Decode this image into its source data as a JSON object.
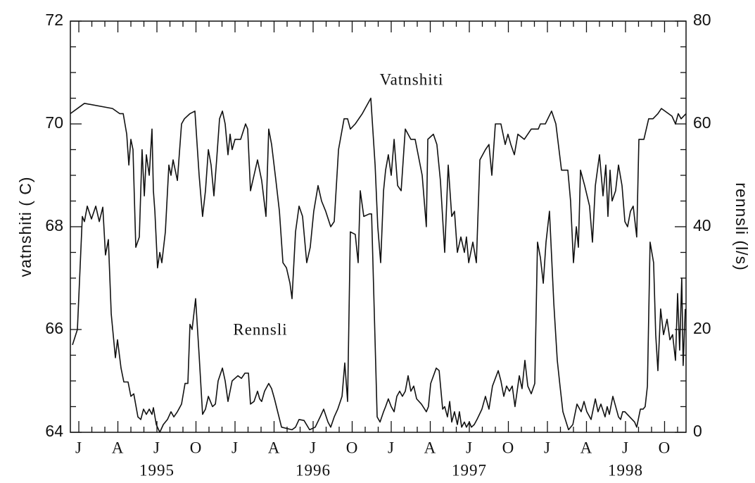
{
  "chart_data": {
    "type": "line",
    "y_label": "vatnshiti ( C)",
    "y2_label": "rennsli (l/s)",
    "xlim": [
      -0.65,
      46.65
    ],
    "xticks": [
      {
        "value": 0,
        "label": "J"
      },
      {
        "value": 3,
        "label": "A"
      },
      {
        "value": 6,
        "label": "J"
      },
      {
        "value": 9,
        "label": "O"
      },
      {
        "value": 12,
        "label": "J"
      },
      {
        "value": 15,
        "label": "A"
      },
      {
        "value": 18,
        "label": "J"
      },
      {
        "value": 21,
        "label": "O"
      },
      {
        "value": 24,
        "label": "J"
      },
      {
        "value": 27,
        "label": "A"
      },
      {
        "value": 30,
        "label": "J"
      },
      {
        "value": 33,
        "label": "O"
      },
      {
        "value": 36,
        "label": "J"
      },
      {
        "value": 39,
        "label": "A"
      },
      {
        "value": 42,
        "label": "J"
      },
      {
        "value": 45,
        "label": "O"
      }
    ],
    "xyear_ticks": [
      {
        "value": 6,
        "label": "1995"
      },
      {
        "value": 18,
        "label": "1996"
      },
      {
        "value": 30,
        "label": "1997"
      },
      {
        "value": 42,
        "label": "1998"
      }
    ],
    "xminor_ticks": [
      1,
      2,
      4,
      5,
      7,
      8,
      10,
      11,
      13,
      14,
      16,
      17,
      19,
      20,
      22,
      23,
      25,
      26,
      28,
      29,
      31,
      32,
      34,
      35,
      37,
      38,
      40,
      41,
      43,
      44,
      46
    ],
    "ylim": [
      64,
      72
    ],
    "yticks": [
      64,
      66,
      68,
      70,
      72
    ],
    "yminor_ticks": [
      64.5,
      65,
      65.5,
      66.5,
      67,
      67.5,
      68.5,
      69,
      69.5,
      70.5,
      71,
      71.5
    ],
    "y2lim": [
      0,
      80
    ],
    "y2ticks": [
      0,
      20,
      40,
      60,
      80
    ],
    "y2minor_ticks": [
      5,
      10,
      15,
      25,
      30,
      35,
      45,
      50,
      55,
      65,
      70,
      75
    ],
    "series": [
      {
        "name": "Vatnshiti",
        "color": "#111111",
        "axis": "y",
        "x": [
          -0.65,
          0.43,
          2.59,
          3.14,
          3.41,
          3.68,
          3.84,
          4.0,
          4.16,
          4.38,
          4.65,
          4.86,
          5.03,
          5.19,
          5.41,
          5.62,
          5.73,
          5.84,
          6.05,
          6.22,
          6.38,
          6.65,
          6.92,
          7.08,
          7.24,
          7.57,
          7.89,
          8.11,
          8.54,
          8.92,
          9.24,
          9.51,
          9.73,
          9.95,
          10.16,
          10.38,
          10.59,
          10.81,
          11.03,
          11.24,
          11.46,
          11.62,
          11.78,
          12.0,
          12.43,
          12.81,
          12.97,
          13.19,
          13.46,
          13.73,
          14.05,
          14.38,
          14.59,
          14.81,
          15.14,
          15.41,
          15.68,
          15.95,
          16.22,
          16.38,
          16.65,
          16.92,
          17.19,
          17.51,
          17.78,
          18.05,
          18.38,
          18.65,
          18.97,
          19.35,
          19.62,
          19.95,
          20.38,
          20.65,
          20.86,
          21.24,
          21.78,
          22.43,
          22.76,
          22.97,
          23.19,
          23.41,
          23.57,
          23.78,
          24.0,
          24.22,
          24.49,
          24.76,
          25.08,
          25.51,
          25.84,
          26.38,
          26.7,
          26.81,
          27.24,
          27.51,
          27.78,
          28.11,
          28.38,
          28.65,
          28.86,
          29.08,
          29.35,
          29.62,
          29.78,
          29.95,
          30.27,
          30.54,
          30.81,
          31.24,
          31.51,
          31.73,
          32.0,
          32.43,
          32.76,
          32.97,
          33.19,
          33.46,
          33.73,
          34.22,
          34.76,
          35.3,
          35.46,
          35.84,
          36.32,
          36.65,
          37.08,
          37.57,
          37.78,
          38.0,
          38.22,
          38.38,
          38.54,
          38.86,
          39.24,
          39.46,
          39.68,
          40.0,
          40.27,
          40.49,
          40.65,
          40.81,
          40.97,
          41.24,
          41.46,
          41.73,
          41.95,
          42.16,
          42.38,
          42.59,
          42.86,
          43.03,
          43.41,
          43.78,
          44.11,
          44.49,
          44.76,
          45.3,
          45.57,
          45.84,
          46.05,
          46.27,
          46.65
        ],
        "values": [
          70.2,
          70.4,
          70.3,
          70.2,
          70.2,
          69.8,
          69.2,
          69.7,
          69.5,
          67.6,
          67.8,
          69.5,
          68.6,
          69.4,
          69.0,
          69.9,
          68.7,
          68.3,
          67.2,
          67.5,
          67.3,
          67.9,
          69.2,
          69.0,
          69.3,
          68.9,
          70.0,
          70.1,
          70.2,
          70.25,
          69.0,
          68.2,
          68.7,
          69.5,
          69.2,
          68.6,
          69.3,
          70.1,
          70.25,
          70.0,
          69.4,
          69.8,
          69.5,
          69.7,
          69.7,
          70.0,
          69.9,
          68.7,
          69.0,
          69.3,
          68.9,
          68.2,
          69.9,
          69.6,
          68.9,
          68.3,
          67.3,
          67.2,
          66.9,
          66.6,
          67.9,
          68.4,
          68.2,
          67.3,
          67.6,
          68.3,
          68.8,
          68.5,
          68.3,
          68.0,
          68.1,
          69.5,
          70.1,
          70.1,
          69.9,
          70.0,
          70.2,
          70.5,
          69.2,
          68.0,
          67.3,
          68.7,
          69.1,
          69.4,
          69.0,
          69.7,
          68.8,
          68.7,
          69.9,
          69.7,
          69.7,
          69.0,
          68.0,
          69.7,
          69.8,
          69.6,
          68.9,
          67.5,
          69.2,
          68.2,
          68.3,
          67.5,
          67.8,
          67.5,
          67.8,
          67.3,
          67.7,
          67.3,
          69.3,
          69.5,
          69.6,
          69.0,
          70.0,
          70.0,
          69.6,
          69.8,
          69.6,
          69.4,
          69.8,
          69.7,
          69.9,
          69.9,
          70.0,
          70.0,
          70.25,
          70.0,
          69.1,
          69.1,
          68.5,
          67.3,
          68.0,
          67.6,
          69.1,
          68.8,
          68.4,
          67.7,
          68.8,
          69.4,
          68.6,
          69.2,
          68.2,
          69.1,
          68.5,
          68.7,
          69.2,
          68.8,
          68.1,
          68.0,
          68.3,
          68.4,
          67.8,
          69.7,
          69.7,
          70.1,
          70.1,
          70.2,
          70.3,
          70.2,
          70.15,
          70.0,
          70.2,
          70.1,
          70.2
        ]
      },
      {
        "name": "Rennsli",
        "color": "#111111",
        "axis": "y2",
        "x": [
          -0.49,
          -0.11,
          0.27,
          0.43,
          0.65,
          0.97,
          1.3,
          1.57,
          1.84,
          2.05,
          2.27,
          2.49,
          2.81,
          2.97,
          3.24,
          3.46,
          3.78,
          4.0,
          4.22,
          4.54,
          4.76,
          4.97,
          5.19,
          5.41,
          5.62,
          5.73,
          5.95,
          6.22,
          6.49,
          6.81,
          7.08,
          7.3,
          7.57,
          7.89,
          8.16,
          8.38,
          8.54,
          8.7,
          8.97,
          9.24,
          9.51,
          9.73,
          9.95,
          10.27,
          10.49,
          10.7,
          11.03,
          11.24,
          11.46,
          11.78,
          12.22,
          12.49,
          12.76,
          13.03,
          13.19,
          13.46,
          13.73,
          13.89,
          14.05,
          14.27,
          14.59,
          14.81,
          15.03,
          15.57,
          16.38,
          16.65,
          16.92,
          17.3,
          17.73,
          18.16,
          18.54,
          18.81,
          19.14,
          19.35,
          19.62,
          19.89,
          20.22,
          20.43,
          20.65,
          20.86,
          21.24,
          21.46,
          21.62,
          21.89,
          22.32,
          22.49,
          22.92,
          23.14,
          23.41,
          23.57,
          23.78,
          24.0,
          24.22,
          24.43,
          24.65,
          24.86,
          25.08,
          25.3,
          25.51,
          25.73,
          25.95,
          26.32,
          26.7,
          26.86,
          27.03,
          27.46,
          27.68,
          27.95,
          28.11,
          28.32,
          28.49,
          28.65,
          28.86,
          29.08,
          29.24,
          29.41,
          29.62,
          29.78,
          30.0,
          30.16,
          30.38,
          30.59,
          30.97,
          31.24,
          31.51,
          31.78,
          32.22,
          32.43,
          32.65,
          32.86,
          33.08,
          33.3,
          33.51,
          33.84,
          34.05,
          34.27,
          34.49,
          34.76,
          35.03,
          35.24,
          35.46,
          35.68,
          35.89,
          36.16,
          36.49,
          36.76,
          36.97,
          37.19,
          37.62,
          37.95,
          38.27,
          38.59,
          38.81,
          39.03,
          39.35,
          39.68,
          39.89,
          40.11,
          40.43,
          40.59,
          40.76,
          41.03,
          41.3,
          41.46,
          41.62,
          41.78,
          41.95,
          42.32,
          42.7,
          42.86,
          43.14,
          43.35,
          43.51,
          43.68,
          43.89,
          44.16,
          44.32,
          44.49,
          44.7,
          44.92,
          45.19,
          45.41,
          45.62,
          45.84,
          46.0,
          46.16,
          46.32,
          46.43,
          46.59
        ],
        "values": [
          17,
          20,
          42,
          41,
          44,
          41.5,
          44,
          41,
          43.8,
          34.5,
          37.5,
          23,
          14.5,
          18,
          12.5,
          9.8,
          9.8,
          7,
          7.5,
          3,
          2.5,
          4.5,
          3.5,
          4.5,
          3.5,
          4.8,
          1.5,
          0,
          1.5,
          2.5,
          4,
          3,
          4,
          5.5,
          9.5,
          9.5,
          21,
          20,
          26,
          15,
          3.5,
          4.5,
          7,
          5,
          5.5,
          10,
          12.5,
          10,
          6,
          10,
          11,
          10.5,
          11.5,
          11.5,
          5.5,
          6,
          8,
          6.5,
          6,
          8,
          9.5,
          8.5,
          6.5,
          1,
          0.5,
          1,
          2.5,
          2.3,
          0.5,
          1,
          3,
          4.5,
          2,
          1,
          3,
          4.5,
          7,
          13.5,
          6,
          39,
          38.5,
          33,
          47,
          42,
          42.5,
          42.5,
          3,
          2,
          4,
          5,
          6.5,
          5,
          4,
          7,
          8,
          7,
          8,
          11,
          8,
          9,
          6.5,
          5.5,
          4,
          5,
          9.5,
          12.5,
          12,
          4.5,
          5,
          3,
          6,
          2,
          4,
          1.5,
          4,
          1,
          2,
          1,
          2,
          1,
          1.5,
          2.5,
          4.5,
          7,
          4.5,
          9,
          12,
          10,
          7,
          9,
          8,
          9,
          5,
          11,
          8.5,
          14,
          9,
          7.5,
          9.5,
          37,
          34,
          29,
          37,
          43,
          25,
          14,
          9,
          4,
          0.5,
          1.5,
          5.5,
          4,
          6,
          4,
          2.5,
          6.5,
          4,
          5.5,
          3,
          5,
          3.5,
          7,
          4.5,
          3,
          2.5,
          4,
          4,
          3,
          2,
          1,
          4.5,
          4.5,
          5,
          9,
          37,
          33,
          19,
          12,
          24,
          19,
          22,
          18,
          19,
          14,
          27,
          16,
          30,
          13,
          24
        ]
      }
    ]
  }
}
